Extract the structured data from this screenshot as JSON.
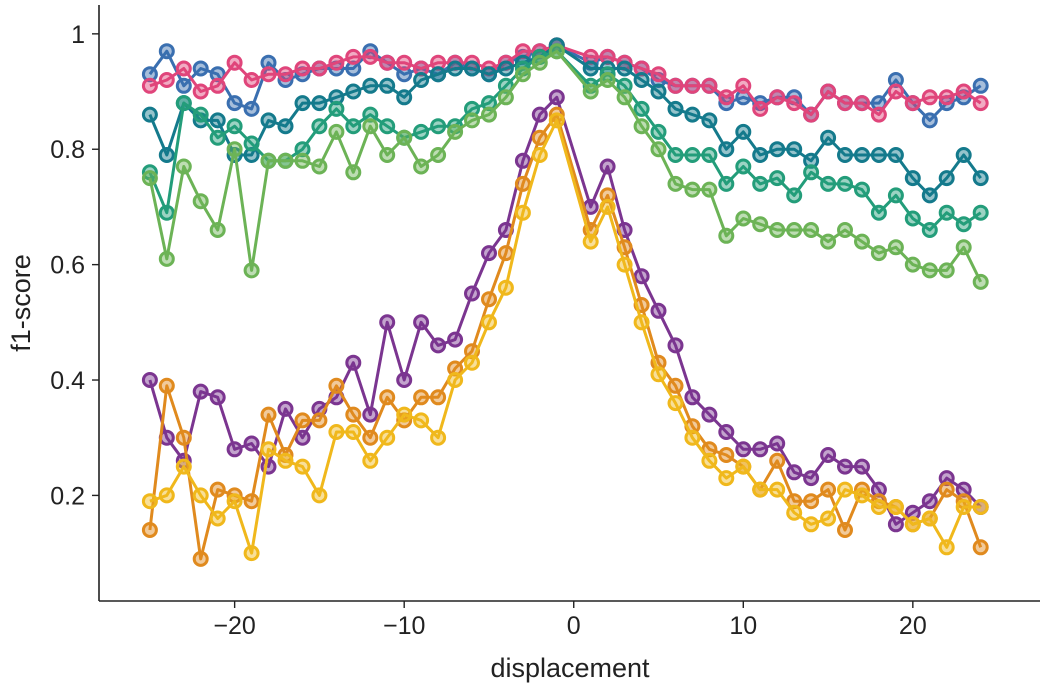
{
  "chart_data": {
    "type": "line",
    "title": "",
    "xlabel": "displacement",
    "ylabel": "f1-score",
    "xlim": [
      -28,
      27.5
    ],
    "ylim": [
      0.017,
      1.05
    ],
    "xticks": [
      -20,
      -10,
      0,
      10,
      20
    ],
    "xtick_labels": [
      "−20",
      "−10",
      "0",
      "10",
      "20"
    ],
    "yticks": [
      0.2,
      0.4,
      0.6,
      0.8,
      1.0
    ],
    "ytick_labels": [
      "0.2",
      "0.4",
      "0.6",
      "0.8",
      "1"
    ],
    "grid": false,
    "legend": "none",
    "x": [
      -25,
      -24,
      -23,
      -22,
      -21,
      -20,
      -19,
      -18,
      -17,
      -16,
      -15,
      -14,
      -13,
      -12,
      -11,
      -10,
      -9,
      -8,
      -7,
      -6,
      -5,
      -4,
      -3,
      -2,
      -1,
      1,
      2,
      3,
      4,
      5,
      6,
      7,
      8,
      9,
      10,
      11,
      12,
      13,
      14,
      15,
      16,
      17,
      18,
      19,
      20,
      21,
      22,
      23,
      24
    ],
    "series": [
      {
        "name": "series-blue",
        "color": "#3a6fb0",
        "values": [
          0.93,
          0.97,
          0.91,
          0.94,
          0.93,
          0.88,
          0.87,
          0.95,
          0.92,
          0.93,
          0.94,
          0.94,
          0.94,
          0.97,
          0.95,
          0.93,
          0.94,
          0.93,
          0.95,
          0.94,
          0.93,
          0.95,
          0.96,
          0.97,
          0.98,
          0.95,
          0.96,
          0.95,
          0.94,
          0.92,
          0.91,
          0.91,
          0.91,
          0.88,
          0.89,
          0.88,
          0.89,
          0.89,
          0.86,
          0.9,
          0.88,
          0.88,
          0.88,
          0.92,
          0.88,
          0.85,
          0.88,
          0.89,
          0.91
        ]
      },
      {
        "name": "series-pink",
        "color": "#e0457b",
        "values": [
          0.91,
          0.92,
          0.94,
          0.9,
          0.91,
          0.95,
          0.92,
          0.93,
          0.93,
          0.94,
          0.94,
          0.95,
          0.96,
          0.96,
          0.95,
          0.95,
          0.94,
          0.95,
          0.95,
          0.95,
          0.94,
          0.95,
          0.97,
          0.97,
          0.98,
          0.96,
          0.96,
          0.95,
          0.94,
          0.93,
          0.91,
          0.91,
          0.91,
          0.89,
          0.91,
          0.87,
          0.89,
          0.88,
          0.86,
          0.9,
          0.88,
          0.88,
          0.86,
          0.9,
          0.88,
          0.89,
          0.89,
          0.9,
          0.88
        ]
      },
      {
        "name": "series-teal",
        "color": "#147a8c",
        "values": [
          0.86,
          0.79,
          0.88,
          0.85,
          0.85,
          0.79,
          0.79,
          0.85,
          0.84,
          0.88,
          0.88,
          0.89,
          0.9,
          0.91,
          0.91,
          0.89,
          0.92,
          0.93,
          0.94,
          0.94,
          0.93,
          0.94,
          0.95,
          0.96,
          0.98,
          0.94,
          0.94,
          0.94,
          0.92,
          0.9,
          0.87,
          0.86,
          0.85,
          0.8,
          0.83,
          0.79,
          0.8,
          0.8,
          0.78,
          0.82,
          0.79,
          0.79,
          0.79,
          0.79,
          0.75,
          0.72,
          0.75,
          0.79,
          0.75
        ]
      },
      {
        "name": "series-green",
        "color": "#239d7a",
        "values": [
          0.76,
          0.69,
          0.88,
          0.86,
          0.82,
          0.84,
          0.81,
          0.78,
          0.78,
          0.8,
          0.84,
          0.87,
          0.84,
          0.86,
          0.84,
          0.82,
          0.83,
          0.84,
          0.84,
          0.87,
          0.88,
          0.91,
          0.94,
          0.96,
          0.97,
          0.91,
          0.93,
          0.91,
          0.87,
          0.83,
          0.79,
          0.79,
          0.79,
          0.74,
          0.77,
          0.74,
          0.75,
          0.72,
          0.76,
          0.74,
          0.74,
          0.73,
          0.69,
          0.72,
          0.68,
          0.66,
          0.69,
          0.67,
          0.69
        ]
      },
      {
        "name": "series-lightgreen",
        "color": "#6cb356",
        "values": [
          0.75,
          0.61,
          0.77,
          0.71,
          0.66,
          0.8,
          0.59,
          0.78,
          0.78,
          0.78,
          0.77,
          0.83,
          0.76,
          0.84,
          0.79,
          0.82,
          0.77,
          0.79,
          0.83,
          0.85,
          0.86,
          0.89,
          0.93,
          0.95,
          0.97,
          0.9,
          0.92,
          0.89,
          0.84,
          0.8,
          0.74,
          0.73,
          0.73,
          0.65,
          0.68,
          0.67,
          0.66,
          0.66,
          0.66,
          0.64,
          0.66,
          0.64,
          0.62,
          0.63,
          0.6,
          0.59,
          0.59,
          0.63,
          0.57
        ]
      },
      {
        "name": "series-purple",
        "color": "#7b3590",
        "values": [
          0.4,
          0.3,
          0.26,
          0.38,
          0.37,
          0.28,
          0.29,
          0.25,
          0.35,
          0.3,
          0.35,
          0.37,
          0.43,
          0.34,
          0.5,
          0.4,
          0.5,
          0.46,
          0.47,
          0.55,
          0.62,
          0.66,
          0.78,
          0.86,
          0.89,
          0.7,
          0.77,
          0.66,
          0.58,
          0.52,
          0.46,
          0.37,
          0.34,
          0.31,
          0.28,
          0.28,
          0.29,
          0.24,
          0.23,
          0.27,
          0.25,
          0.25,
          0.21,
          0.15,
          0.17,
          0.19,
          0.23,
          0.21,
          0.18
        ]
      },
      {
        "name": "series-orange",
        "color": "#e08a1e",
        "values": [
          0.14,
          0.39,
          0.3,
          0.09,
          0.21,
          0.2,
          0.19,
          0.34,
          0.27,
          0.33,
          0.33,
          0.39,
          0.34,
          0.3,
          0.37,
          0.33,
          0.37,
          0.37,
          0.42,
          0.45,
          0.54,
          0.62,
          0.74,
          0.82,
          0.86,
          0.66,
          0.72,
          0.63,
          0.53,
          0.43,
          0.39,
          0.32,
          0.28,
          0.27,
          0.25,
          0.21,
          0.26,
          0.19,
          0.19,
          0.21,
          0.14,
          0.21,
          0.19,
          0.18,
          0.15,
          0.16,
          0.21,
          0.19,
          0.11
        ]
      },
      {
        "name": "series-yellow",
        "color": "#f0b81c",
        "values": [
          0.19,
          0.2,
          0.25,
          0.2,
          0.16,
          0.19,
          0.1,
          0.28,
          0.26,
          0.25,
          0.2,
          0.31,
          0.31,
          0.26,
          0.3,
          0.34,
          0.33,
          0.3,
          0.4,
          0.43,
          0.5,
          0.56,
          0.69,
          0.79,
          0.85,
          0.64,
          0.7,
          0.6,
          0.5,
          0.41,
          0.36,
          0.3,
          0.26,
          0.23,
          0.25,
          0.21,
          0.21,
          0.17,
          0.15,
          0.16,
          0.21,
          0.2,
          0.18,
          0.18,
          0.15,
          0.16,
          0.11,
          0.18,
          0.18
        ]
      }
    ]
  }
}
